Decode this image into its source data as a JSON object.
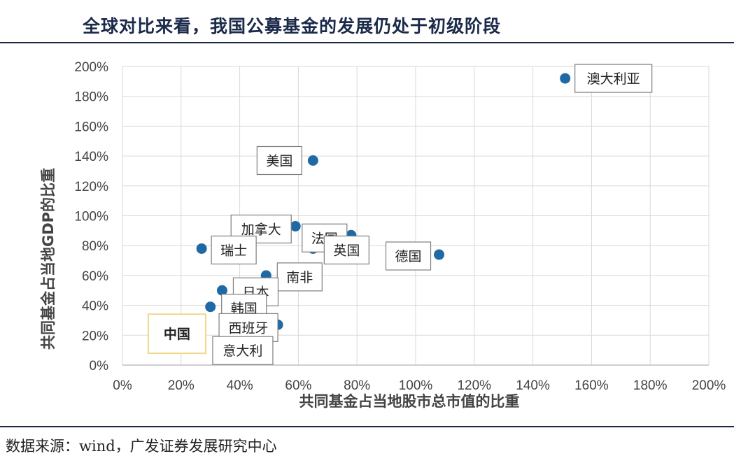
{
  "header": {
    "title": "全球对比来看，我国公募基金的发展仍处于初级阶段"
  },
  "footer": {
    "source": "数据来源：wind，广发证券发展研究中心"
  },
  "chart_data": {
    "type": "scatter",
    "xlabel": "共同基金占当地股市总市值的比重",
    "ylabel": "共同基金占当地GDP的比重",
    "xlim": [
      0,
      2.0
    ],
    "ylim": [
      0,
      2.0
    ],
    "xticks": [
      "0%",
      "20%",
      "40%",
      "60%",
      "80%",
      "100%",
      "120%",
      "140%",
      "160%",
      "180%",
      "200%"
    ],
    "yticks": [
      "0%",
      "20%",
      "40%",
      "60%",
      "80%",
      "100%",
      "120%",
      "140%",
      "160%",
      "180%",
      "200%"
    ],
    "grid": true,
    "marker_color": "#1f6aa5",
    "highlight_color": "#c00000",
    "points": [
      {
        "name": "澳大利亚",
        "x": 1.51,
        "y": 1.92
      },
      {
        "name": "美国",
        "x": 0.65,
        "y": 1.37
      },
      {
        "name": "加拿大",
        "x": 0.59,
        "y": 0.93
      },
      {
        "name": "法国",
        "x": 0.78,
        "y": 0.87
      },
      {
        "name": "英国",
        "x": 0.65,
        "y": 0.78
      },
      {
        "name": "瑞士",
        "x": 0.27,
        "y": 0.78
      },
      {
        "name": "德国",
        "x": 1.08,
        "y": 0.74
      },
      {
        "name": "南非",
        "x": 0.49,
        "y": 0.6
      },
      {
        "name": "日本",
        "x": 0.34,
        "y": 0.5
      },
      {
        "name": "韩国",
        "x": 0.3,
        "y": 0.39
      },
      {
        "name": "西班牙",
        "x": 0.53,
        "y": 0.27
      },
      {
        "name": "中国",
        "x": 0.26,
        "y": 0.21,
        "highlight": true
      },
      {
        "name": "意大利",
        "x": 0.26,
        "y": 0.21
      }
    ]
  }
}
